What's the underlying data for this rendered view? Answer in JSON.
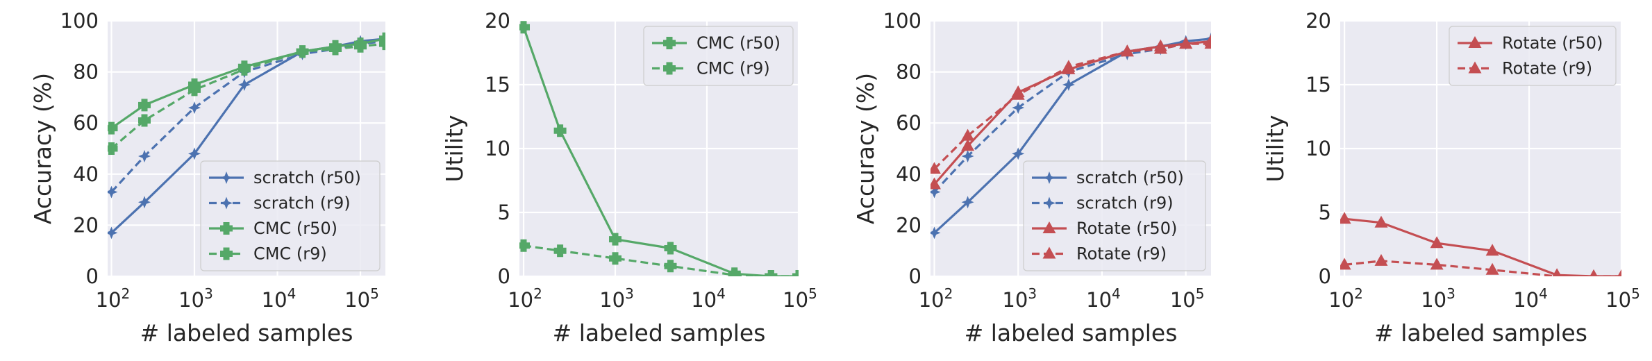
{
  "figure": {
    "x_tick_labels": [
      {
        "base": "10",
        "exp": "2"
      },
      {
        "base": "10",
        "exp": "3"
      },
      {
        "base": "10",
        "exp": "4"
      },
      {
        "base": "10",
        "exp": "5"
      }
    ]
  },
  "chart_data": [
    {
      "type": "line",
      "title": "",
      "xlabel": "# labeled samples",
      "ylabel": "Accuracy (%)",
      "xscale": "log",
      "xlim": [
        90,
        200000
      ],
      "ylim": [
        0,
        100
      ],
      "yticks": [
        0,
        20,
        40,
        60,
        80,
        100
      ],
      "grid": true,
      "legend_position": "bottom-right",
      "x": [
        100,
        250,
        1000,
        4000,
        20000,
        50000,
        100000,
        200000
      ],
      "series": [
        {
          "name": "scratch (r50)",
          "color": "#4c72b0",
          "dash": "solid",
          "marker": "star",
          "values": [
            17,
            29,
            48,
            75,
            88,
            90,
            92,
            93
          ]
        },
        {
          "name": "scratch (r9)",
          "color": "#4c72b0",
          "dash": "dashed",
          "marker": "star",
          "values": [
            33,
            47,
            66,
            80,
            87,
            89,
            91,
            92
          ]
        },
        {
          "name": "CMC (r50)",
          "color": "#55a868",
          "dash": "solid",
          "marker": "plus",
          "values": [
            58,
            67,
            75,
            82,
            88,
            90,
            91,
            93
          ]
        },
        {
          "name": "CMC (r9)",
          "color": "#55a868",
          "dash": "dashed",
          "marker": "plus",
          "values": [
            50,
            61,
            73,
            81,
            88,
            89,
            90,
            91
          ]
        }
      ]
    },
    {
      "type": "line",
      "title": "",
      "xlabel": "# labeled samples",
      "ylabel": "Utility",
      "xscale": "log",
      "xlim": [
        90,
        100000
      ],
      "ylim": [
        0,
        20
      ],
      "yticks": [
        0,
        5,
        10,
        15,
        20
      ],
      "grid": true,
      "legend_position": "top-right",
      "x": [
        100,
        250,
        1000,
        4000,
        20000,
        50000,
        100000
      ],
      "series": [
        {
          "name": "CMC (r50)",
          "color": "#55a868",
          "dash": "solid",
          "marker": "plus",
          "values": [
            19.5,
            11.4,
            2.9,
            2.2,
            0.2,
            0.0,
            0.0
          ]
        },
        {
          "name": "CMC (r9)",
          "color": "#55a868",
          "dash": "dashed",
          "marker": "plus",
          "values": [
            2.4,
            2.0,
            1.4,
            0.8,
            0.1,
            0.0,
            0.0
          ]
        }
      ]
    },
    {
      "type": "line",
      "title": "",
      "xlabel": "# labeled samples",
      "ylabel": "Accuracy (%)",
      "xscale": "log",
      "xlim": [
        90,
        200000
      ],
      "ylim": [
        0,
        100
      ],
      "yticks": [
        0,
        20,
        40,
        60,
        80,
        100
      ],
      "grid": true,
      "legend_position": "bottom-right",
      "x": [
        100,
        250,
        1000,
        4000,
        20000,
        50000,
        100000,
        200000
      ],
      "series": [
        {
          "name": "scratch (r50)",
          "color": "#4c72b0",
          "dash": "solid",
          "marker": "star",
          "values": [
            17,
            29,
            48,
            75,
            88,
            90,
            92,
            93
          ]
        },
        {
          "name": "scratch (r9)",
          "color": "#4c72b0",
          "dash": "dashed",
          "marker": "star",
          "values": [
            33,
            47,
            66,
            80,
            87,
            89,
            91,
            92
          ]
        },
        {
          "name": "Rotate (r50)",
          "color": "#c44e52",
          "dash": "solid",
          "marker": "triangle",
          "values": [
            36,
            51,
            72,
            81,
            88,
            90,
            91,
            92
          ]
        },
        {
          "name": "Rotate (r9)",
          "color": "#c44e52",
          "dash": "dashed",
          "marker": "triangle",
          "values": [
            42,
            55,
            71,
            82,
            88,
            89,
            91,
            91
          ]
        }
      ]
    },
    {
      "type": "line",
      "title": "",
      "xlabel": "# labeled samples",
      "ylabel": "Utility",
      "xscale": "log",
      "xlim": [
        90,
        100000
      ],
      "ylim": [
        0,
        20
      ],
      "yticks": [
        0,
        5,
        10,
        15,
        20
      ],
      "grid": true,
      "legend_position": "top-right",
      "x": [
        100,
        250,
        1000,
        4000,
        20000,
        50000,
        100000
      ],
      "series": [
        {
          "name": "Rotate (r50)",
          "color": "#c44e52",
          "dash": "solid",
          "marker": "triangle",
          "values": [
            4.5,
            4.2,
            2.6,
            2.0,
            0.1,
            0.0,
            0.0
          ]
        },
        {
          "name": "Rotate (r9)",
          "color": "#c44e52",
          "dash": "dashed",
          "marker": "triangle",
          "values": [
            0.9,
            1.2,
            0.9,
            0.5,
            0.0,
            0.0,
            0.0
          ]
        }
      ]
    }
  ]
}
